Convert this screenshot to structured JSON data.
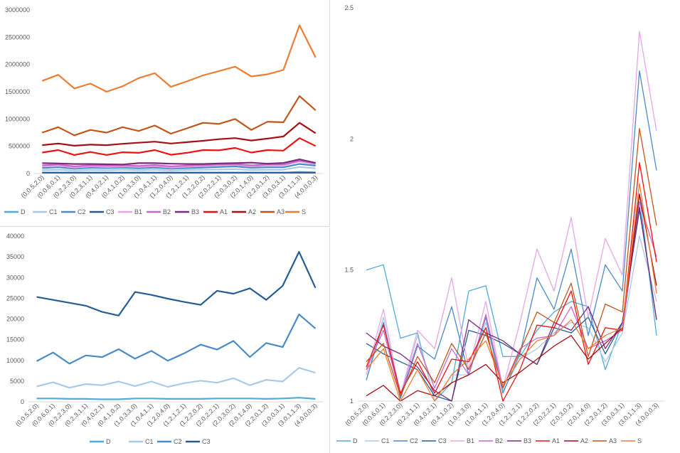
{
  "x_categories": [
    "(0,0.5,2,0)",
    "(0,0.6,0,1)",
    "(0,2,2,3,0)",
    "(0,2,3,1,1)",
    "(0,4,0,2,1)",
    "(0,4,1,0,2)",
    "(1,0,3,3,0)",
    "(1,0,4,1,1)",
    "(1,2,0,4,0)",
    "(1,2,1,2,1)",
    "(1,2,2,0,2)",
    "(2,0,2,2,1)",
    "(2,0,3,0,2)",
    "(2,0,1,4,0)",
    "(2,2,0,1,2)",
    "(3,0,0,3,1)",
    "(3,0,1,1,3)",
    "(4,0,0,0,3)"
  ],
  "colors": {
    "D": "#4dacd9",
    "C1": "#a9c9e8",
    "C2": "#4b8ac8",
    "C3": "#245d96",
    "B1": "#e6a6e6",
    "B2": "#cc66cc",
    "B3": "#7a2b7a",
    "A1": "#ee1111",
    "A2": "#a50f15",
    "A3": "#c0561a",
    "S": "#ed7d31"
  },
  "chart_data": [
    {
      "type": "line",
      "ylim": [
        0,
        3000000
      ],
      "y_ticks": [
        "0",
        "500000",
        "1000000",
        "1500000",
        "2000000",
        "2500000",
        "3000000"
      ],
      "series": [
        {
          "name": "D",
          "values": [
            15000,
            15000,
            15000,
            15000,
            15000,
            15000,
            15000,
            15000,
            15000,
            15000,
            15000,
            15000,
            15000,
            15000,
            15000,
            15000,
            30000,
            20000
          ]
        },
        {
          "name": "C1",
          "values": [
            60000,
            70000,
            55000,
            65000,
            60000,
            70000,
            60000,
            70000,
            55000,
            65000,
            70000,
            75000,
            80000,
            65000,
            70000,
            70000,
            120000,
            95000
          ]
        },
        {
          "name": "C2",
          "values": [
            100000,
            115000,
            90000,
            105000,
            100000,
            110000,
            95000,
            110000,
            90000,
            100000,
            110000,
            120000,
            130000,
            105000,
            115000,
            115000,
            175000,
            145000
          ]
        },
        {
          "name": "C3",
          "values": [
            15000,
            15000,
            15000,
            15000,
            15000,
            15000,
            15000,
            15000,
            15000,
            15000,
            15000,
            15000,
            15000,
            15000,
            15000,
            15000,
            15000,
            15000
          ]
        },
        {
          "name": "B1",
          "values": [
            130000,
            150000,
            110000,
            130000,
            120000,
            130000,
            120000,
            135000,
            110000,
            125000,
            140000,
            150000,
            160000,
            130000,
            150000,
            150000,
            220000,
            175000
          ]
        },
        {
          "name": "B2",
          "values": [
            150000,
            165000,
            130000,
            150000,
            145000,
            150000,
            140000,
            155000,
            130000,
            145000,
            155000,
            165000,
            175000,
            150000,
            165000,
            165000,
            235000,
            185000
          ]
        },
        {
          "name": "B3",
          "values": [
            190000,
            185000,
            175000,
            175000,
            170000,
            165000,
            190000,
            190000,
            180000,
            175000,
            175000,
            185000,
            190000,
            200000,
            180000,
            195000,
            260000,
            195000
          ]
        },
        {
          "name": "A1",
          "values": [
            385000,
            430000,
            340000,
            395000,
            340000,
            390000,
            380000,
            430000,
            345000,
            380000,
            430000,
            425000,
            470000,
            385000,
            430000,
            420000,
            650000,
            505000
          ]
        },
        {
          "name": "A2",
          "values": [
            520000,
            550000,
            510000,
            530000,
            520000,
            545000,
            565000,
            585000,
            550000,
            575000,
            600000,
            630000,
            650000,
            605000,
            640000,
            680000,
            930000,
            740000
          ]
        },
        {
          "name": "A3",
          "values": [
            750000,
            850000,
            700000,
            800000,
            750000,
            850000,
            780000,
            880000,
            730000,
            830000,
            930000,
            910000,
            1000000,
            800000,
            950000,
            940000,
            1420000,
            1160000
          ]
        },
        {
          "name": "S",
          "values": [
            1700000,
            1810000,
            1560000,
            1650000,
            1500000,
            1600000,
            1750000,
            1840000,
            1590000,
            1690000,
            1800000,
            1880000,
            1960000,
            1780000,
            1820000,
            1900000,
            2720000,
            2130000
          ]
        }
      ]
    },
    {
      "type": "line",
      "ylim": [
        0,
        40000
      ],
      "y_ticks": [
        "0",
        "5000",
        "10000",
        "15000",
        "20000",
        "25000",
        "30000",
        "35000",
        "40000"
      ],
      "series": [
        {
          "name": "D",
          "values": [
            800,
            800,
            700,
            700,
            600,
            600,
            800,
            800,
            700,
            700,
            700,
            800,
            800,
            800,
            700,
            800,
            1000,
            700
          ]
        },
        {
          "name": "C1",
          "values": [
            3700,
            4700,
            3400,
            4300,
            4000,
            4900,
            3800,
            4900,
            3600,
            4500,
            5100,
            4600,
            5700,
            4000,
            5300,
            4900,
            8200,
            7000
          ]
        },
        {
          "name": "C2",
          "values": [
            9800,
            11900,
            9200,
            11200,
            10800,
            12700,
            10400,
            12300,
            9900,
            11700,
            13800,
            12600,
            14700,
            10800,
            14200,
            13200,
            21100,
            17700
          ]
        },
        {
          "name": "C3",
          "values": [
            25300,
            24600,
            23900,
            23200,
            21700,
            20800,
            26500,
            25800,
            24900,
            24100,
            23400,
            26800,
            26100,
            27400,
            24600,
            28000,
            36200,
            27500
          ]
        }
      ]
    },
    {
      "type": "line",
      "ylim": [
        1,
        2.5
      ],
      "y_ticks": [
        "1",
        "1.5",
        "2",
        "2.5"
      ],
      "series": [
        {
          "name": "D",
          "values": [
            1.5,
            1.52,
            1.24,
            1.26,
            1.0,
            1.07,
            1.42,
            1.44,
            1.17,
            1.17,
            1.27,
            1.34,
            1.38,
            1.36,
            1.12,
            1.3,
            1.79,
            1.25
          ]
        },
        {
          "name": "C1",
          "values": [
            1.08,
            1.32,
            1.02,
            1.25,
            1.0,
            1.1,
            1.1,
            1.3,
            1.04,
            1.16,
            1.2,
            1.26,
            1.3,
            1.28,
            1.15,
            1.26,
            1.63,
            1.38
          ]
        },
        {
          "name": "C2",
          "values": [
            1.08,
            1.3,
            1.01,
            1.21,
            1.16,
            1.36,
            1.1,
            1.32,
            1.03,
            1.18,
            1.47,
            1.35,
            1.58,
            1.25,
            1.52,
            1.42,
            2.26,
            1.88
          ]
        },
        {
          "name": "C3",
          "values": [
            1.22,
            1.18,
            1.15,
            1.12,
            1.02,
            1.0,
            1.27,
            1.25,
            1.22,
            1.18,
            1.14,
            1.28,
            1.26,
            1.32,
            1.18,
            1.3,
            1.73,
            1.31
          ]
        },
        {
          "name": "B1",
          "values": [
            1.1,
            1.35,
            1.02,
            1.27,
            1.2,
            1.47,
            1.12,
            1.38,
            1.05,
            1.3,
            1.58,
            1.42,
            1.7,
            1.32,
            1.62,
            1.48,
            2.41,
            2.03
          ]
        },
        {
          "name": "B2",
          "values": [
            1.12,
            1.27,
            1.02,
            1.22,
            1.05,
            1.2,
            1.1,
            1.33,
            1.05,
            1.2,
            1.24,
            1.25,
            1.36,
            1.2,
            1.23,
            1.27,
            1.76,
            1.55
          ]
        },
        {
          "name": "B3",
          "values": [
            1.26,
            1.21,
            1.18,
            1.13,
            1.04,
            1.0,
            1.31,
            1.26,
            1.23,
            1.18,
            1.14,
            1.3,
            1.27,
            1.36,
            1.2,
            1.3,
            1.74,
            1.31
          ]
        },
        {
          "name": "A1",
          "values": [
            1.13,
            1.29,
            1.03,
            1.15,
            1.03,
            1.16,
            1.15,
            1.28,
            1.0,
            1.12,
            1.29,
            1.28,
            1.42,
            1.14,
            1.28,
            1.27,
            1.91,
            1.53
          ]
        },
        {
          "name": "A2",
          "values": [
            1.02,
            1.06,
            1.0,
            1.04,
            1.02,
            1.07,
            1.1,
            1.14,
            1.07,
            1.11,
            1.16,
            1.21,
            1.25,
            1.16,
            1.22,
            1.28,
            1.79,
            1.44
          ]
        },
        {
          "name": "A3",
          "values": [
            1.15,
            1.22,
            1.02,
            1.17,
            1.07,
            1.22,
            1.12,
            1.26,
            1.05,
            1.19,
            1.34,
            1.3,
            1.45,
            1.17,
            1.37,
            1.34,
            2.04,
            1.67
          ]
        },
        {
          "name": "S",
          "values": [
            1.12,
            1.2,
            1.0,
            1.12,
            1.0,
            1.1,
            1.16,
            1.23,
            1.06,
            1.16,
            1.23,
            1.25,
            1.31,
            1.2,
            1.25,
            1.28,
            1.83,
            1.41
          ]
        }
      ]
    }
  ]
}
